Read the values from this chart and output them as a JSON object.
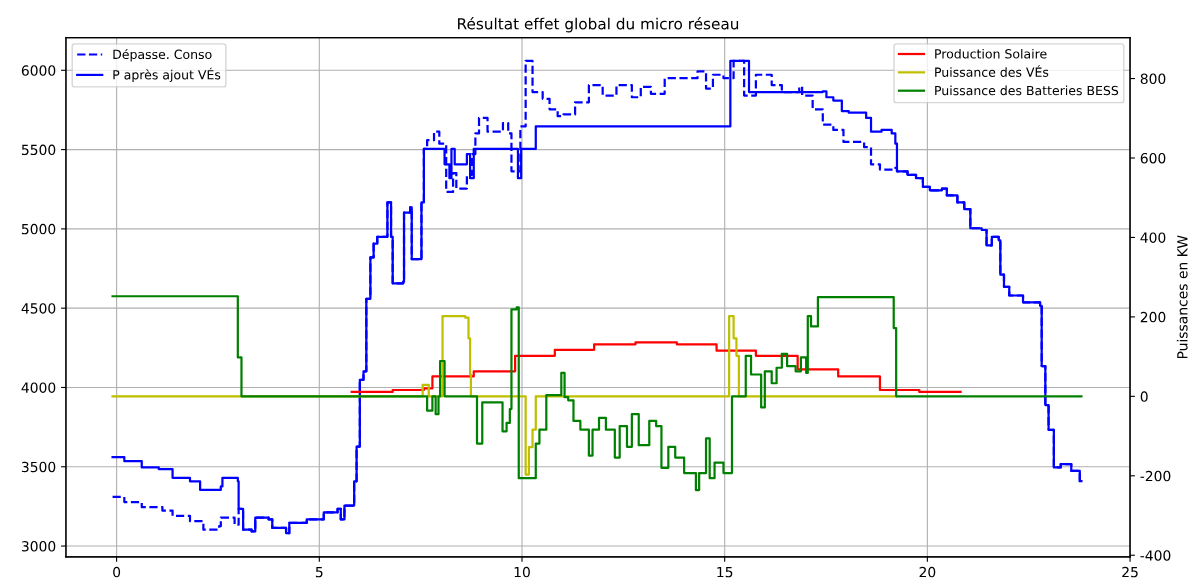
{
  "chart_data": {
    "type": "step",
    "title": "Résultat effet global du micro réseau",
    "y2label": "Puissances en KW",
    "xlim": [
      -1.25,
      25.0
    ],
    "xticks": [
      0,
      5,
      10,
      15,
      20,
      25
    ],
    "ylim": [
      2932,
      6206
    ],
    "yticks": [
      3000,
      3500,
      4000,
      4500,
      5000,
      5500,
      6000
    ],
    "y2lim": [
      -404,
      903
    ],
    "y2ticks": [
      -400,
      -200,
      0,
      200,
      400,
      600,
      800
    ],
    "grid": true,
    "legend": [
      "top left",
      "top right"
    ],
    "series": [
      {
        "name": "Dépasse. Conso",
        "color": "#0000ff",
        "line_style": "dashed",
        "x": [
          -0.1,
          0.19,
          0.62,
          1.13,
          1.38,
          1.81,
          2.14,
          2.53,
          2.57,
          2.82,
          2.91,
          3.01,
          3.12,
          3.33,
          3.42,
          3.75,
          3.84,
          4.18,
          4.26,
          4.69,
          5.11,
          5.45,
          5.53,
          5.62,
          5.86,
          5.92,
          6.0,
          6.09,
          6.16,
          6.26,
          6.34,
          6.43,
          6.68,
          6.77,
          6.81,
          7.07,
          7.09,
          7.24,
          7.28,
          7.49,
          7.52,
          7.58,
          7.66,
          7.83,
          7.96,
          8.13,
          8.3,
          8.38,
          8.64,
          8.77,
          8.85,
          8.94,
          9.15,
          9.53,
          9.66,
          9.74,
          9.96,
          10.09,
          10.26,
          10.51,
          10.68,
          10.88,
          11.02,
          11.31,
          11.65,
          11.99,
          12.33,
          12.71,
          12.93,
          13.18,
          13.52,
          13.86,
          14.33,
          14.54,
          14.71,
          14.97,
          15.22,
          15.48,
          15.77,
          16.16,
          16.41,
          16.84,
          16.91,
          17.17,
          17.42,
          17.68,
          17.93,
          18.44,
          18.61,
          18.83,
          19.21,
          19.25,
          19.51,
          19.72,
          19.89,
          20.06,
          20.36,
          20.48,
          20.74,
          20.91,
          21.06,
          21.34,
          21.46,
          21.59,
          21.76,
          21.8,
          21.89,
          22.02,
          22.36,
          22.78,
          22.82,
          22.91,
          22.99,
          23.12,
          23.29,
          23.55,
          23.76,
          23.8
        ],
        "values": [
          3310,
          3277,
          3245,
          3223,
          3190,
          3157,
          3103,
          3125,
          3179,
          3179,
          3135,
          3234,
          3103,
          3092,
          3179,
          3168,
          3114,
          3081,
          3146,
          3168,
          3212,
          3234,
          3168,
          3255,
          3408,
          3627,
          4048,
          4102,
          4559,
          4820,
          4907,
          4950,
          5167,
          4950,
          4657,
          4667,
          5102,
          5135,
          4809,
          4809,
          5167,
          5504,
          5559,
          5613,
          5537,
          5233,
          5352,
          5254,
          5341,
          5472,
          5602,
          5700,
          5613,
          5667,
          5602,
          5363,
          5646,
          6059,
          5863,
          5820,
          5754,
          5711,
          5722,
          5798,
          5907,
          5841,
          5907,
          5830,
          5896,
          5852,
          5950,
          5950,
          5993,
          5885,
          5972,
          5950,
          6059,
          5841,
          5972,
          5907,
          5863,
          5896,
          5841,
          5754,
          5657,
          5624,
          5548,
          5515,
          5407,
          5374,
          5385,
          5363,
          5341,
          5320,
          5265,
          5243,
          5254,
          5211,
          5167,
          5124,
          5004,
          4993,
          4896,
          4950,
          4928,
          4711,
          4635,
          4580,
          4537,
          4515,
          4135,
          3889,
          3733,
          3496,
          3517,
          3474,
          3409,
          3409
        ]
      },
      {
        "name": "P après ajout VÉs",
        "color": "#0000ff",
        "line_style": "solid",
        "x": [
          -0.1,
          0.19,
          0.62,
          1.04,
          1.38,
          1.81,
          2.06,
          2.57,
          2.61,
          2.99,
          3.01,
          3.12,
          3.33,
          3.42,
          3.75,
          3.84,
          4.18,
          4.26,
          4.69,
          5.11,
          5.45,
          5.53,
          5.62,
          5.86,
          5.92,
          6.0,
          6.09,
          6.16,
          6.26,
          6.34,
          6.43,
          6.68,
          6.77,
          6.81,
          7.07,
          7.09,
          7.24,
          7.28,
          7.49,
          7.52,
          7.58,
          8.09,
          8.21,
          8.26,
          8.34,
          8.64,
          8.72,
          8.81,
          9.9,
          9.98,
          10.34,
          15.14,
          15.6,
          17.42,
          17.51,
          17.68,
          17.89,
          18.06,
          18.49,
          18.61,
          18.87,
          19.12,
          19.21,
          19.25,
          19.51,
          19.72,
          19.89,
          20.06,
          20.36,
          20.48,
          20.74,
          20.91,
          21.06,
          21.34,
          21.46,
          21.59,
          21.76,
          21.8,
          21.89,
          22.02,
          22.36,
          22.78,
          22.82,
          22.91,
          22.99,
          23.12,
          23.29,
          23.55,
          23.76,
          23.8
        ],
        "values": [
          3561,
          3535,
          3496,
          3485,
          3430,
          3408,
          3354,
          3376,
          3430,
          3408,
          3234,
          3103,
          3092,
          3179,
          3168,
          3114,
          3081,
          3146,
          3168,
          3212,
          3234,
          3168,
          3255,
          3408,
          3627,
          4048,
          4102,
          4559,
          4820,
          4907,
          4950,
          5167,
          4950,
          4657,
          4667,
          5102,
          5135,
          4809,
          4809,
          5167,
          5504,
          5407,
          5320,
          5504,
          5407,
          5472,
          5320,
          5504,
          5320,
          5504,
          5646,
          6059,
          5863,
          5867,
          5830,
          5809,
          5743,
          5733,
          5700,
          5613,
          5624,
          5602,
          5537,
          5363,
          5341,
          5320,
          5265,
          5243,
          5254,
          5211,
          5167,
          5124,
          5004,
          4993,
          4896,
          4950,
          4928,
          4711,
          4635,
          4580,
          4537,
          4515,
          4135,
          3889,
          3733,
          3496,
          3517,
          3474,
          3409,
          3409
        ]
      },
      {
        "name": "Production Solaire",
        "color": "#ff0000",
        "axis": "y2",
        "x": [
          5.8,
          6.81,
          7.58,
          7.79,
          8.81,
          9.83,
          10.81,
          11.78,
          12.8,
          13.82,
          14.8,
          15.77,
          16.8,
          17.8,
          18.83,
          19.8,
          20.82
        ],
        "values": [
          11,
          16,
          20,
          50,
          63,
          102,
          117,
          131,
          136,
          131,
          115,
          102,
          68,
          50,
          16,
          11,
          11
        ]
      },
      {
        "name": "Puissance des VÉs",
        "color": "#bfbf00",
        "axis": "y2",
        "x": [
          -0.1,
          7.55,
          7.7,
          8.04,
          8.6,
          8.68,
          8.72,
          8.74,
          10.09,
          10.17,
          10.26,
          10.34,
          15.11,
          15.22,
          15.29,
          15.35,
          19.23
        ],
        "values": [
          0,
          29,
          0,
          202,
          198,
          146,
          55,
          0,
          -197,
          -128,
          -84,
          0,
          202,
          146,
          102,
          0,
          0
        ]
      },
      {
        "name": "Puissance des Batteries BESS",
        "color": "#008000",
        "axis": "y2",
        "x": [
          -0.1,
          2.99,
          3.08,
          7.66,
          7.79,
          7.87,
          7.94,
          7.98,
          8.09,
          8.89,
          9.02,
          9.52,
          9.62,
          9.7,
          9.74,
          9.87,
          9.92,
          10.34,
          10.43,
          10.6,
          10.97,
          11.05,
          11.14,
          11.27,
          11.44,
          11.65,
          11.74,
          11.9,
          12.07,
          12.29,
          12.41,
          12.59,
          12.71,
          12.88,
          13.14,
          13.31,
          13.44,
          13.61,
          13.78,
          14.0,
          14.29,
          14.37,
          14.54,
          14.63,
          14.75,
          14.97,
          15.18,
          15.52,
          15.65,
          15.9,
          15.99,
          16.16,
          16.28,
          16.41,
          16.54,
          16.75,
          16.88,
          17.01,
          17.05,
          17.13,
          17.3,
          19.12,
          19.17,
          19.23,
          23.8
        ],
        "values": [
          252,
          98,
          0,
          -36,
          0,
          -45,
          0,
          89,
          0,
          -119,
          -15,
          -88,
          -67,
          -32,
          219,
          224,
          -206,
          -119,
          -84,
          3,
          59,
          -2,
          -10,
          -62,
          -84,
          -149,
          -84,
          -54,
          -84,
          -154,
          -75,
          -127,
          -45,
          -123,
          -62,
          -75,
          -180,
          -127,
          -154,
          -193,
          -236,
          -193,
          -106,
          -206,
          -167,
          -193,
          0,
          102,
          55,
          -28,
          63,
          33,
          72,
          107,
          76,
          63,
          98,
          59,
          202,
          176,
          250,
          250,
          172,
          0,
          0
        ]
      }
    ]
  }
}
